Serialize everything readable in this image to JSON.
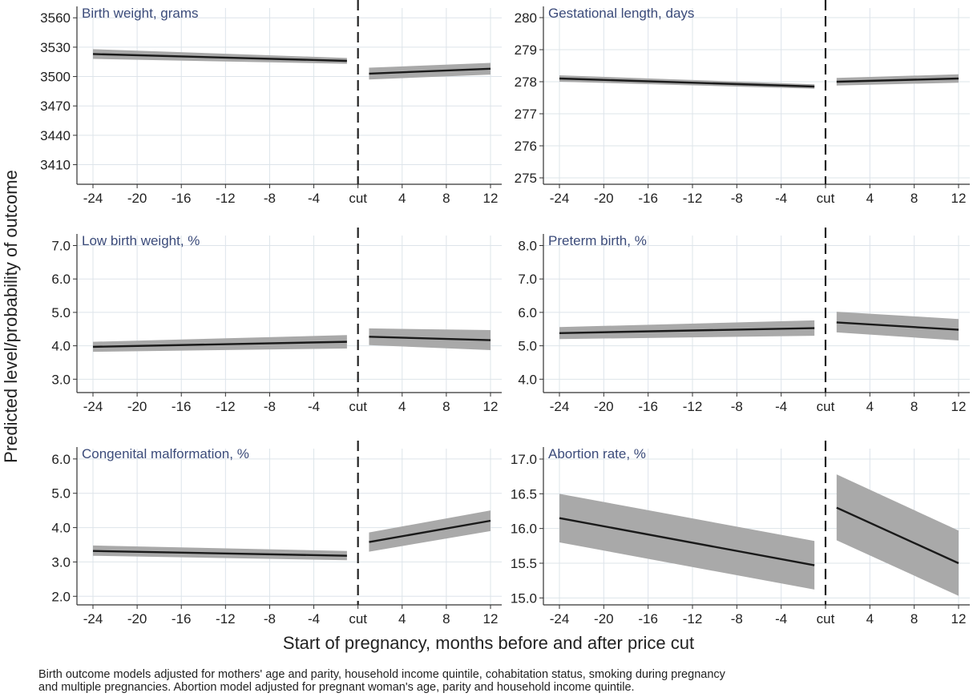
{
  "figure": {
    "ylabel": "Predicted level/probability of outcome",
    "xlabel": "Start of pregnancy, months before and after price cut",
    "footnote_lines": [
      "Birth outcome models adjusted for mothers' age and parity, household income quintile, cohabitation status, smoking during pregnancy",
      "and multiple pregnancies. Abortion model adjusted for pregnant woman's age, parity and household income quintile."
    ]
  },
  "colors": {
    "line": "#1a1a1a",
    "band": "#a9a9a9",
    "grid": "#dde4ea",
    "title": "#3b4b7a",
    "axis": "#333333"
  },
  "chart_data": [
    {
      "type": "line",
      "title": "Birth weight, grams",
      "xticks": [
        "-24",
        "-20",
        "-16",
        "-12",
        "-8",
        "-4",
        "cut",
        "4",
        "8",
        "12"
      ],
      "xrange": [
        -24,
        12
      ],
      "ylim": [
        3390,
        3570
      ],
      "yticks": [
        "3410",
        "3440",
        "3470",
        "3500",
        "3530",
        "3560"
      ],
      "series": [
        {
          "segment": "before",
          "x": [
            -24,
            -1
          ],
          "y": [
            3523,
            3516
          ],
          "lower": [
            3518,
            3513
          ],
          "upper": [
            3528,
            3519
          ]
        },
        {
          "segment": "after",
          "x": [
            1,
            12
          ],
          "y": [
            3503,
            3508
          ],
          "lower": [
            3497,
            3502
          ],
          "upper": [
            3509,
            3514
          ]
        }
      ]
    },
    {
      "type": "line",
      "title": "Gestational length, days",
      "xticks": [
        "-24",
        "-20",
        "-16",
        "-12",
        "-8",
        "-4",
        "cut",
        "4",
        "8",
        "12"
      ],
      "xrange": [
        -24,
        12
      ],
      "ylim": [
        274.8,
        280.3
      ],
      "yticks": [
        "275",
        "276",
        "277",
        "278",
        "279",
        "280"
      ],
      "series": [
        {
          "segment": "before",
          "x": [
            -24,
            -1
          ],
          "y": [
            278.1,
            277.85
          ],
          "lower": [
            278.0,
            277.78
          ],
          "upper": [
            278.2,
            277.92
          ]
        },
        {
          "segment": "after",
          "x": [
            1,
            12
          ],
          "y": [
            278.0,
            278.1
          ],
          "lower": [
            277.88,
            277.97
          ],
          "upper": [
            278.12,
            278.23
          ]
        }
      ]
    },
    {
      "type": "line",
      "title": "Low birth weight, %",
      "xticks": [
        "-24",
        "-20",
        "-16",
        "-12",
        "-8",
        "-4",
        "cut",
        "4",
        "8",
        "12"
      ],
      "xrange": [
        -24,
        12
      ],
      "ylim": [
        2.6,
        7.3
      ],
      "yticks": [
        "3.0",
        "4.0",
        "5.0",
        "6.0",
        "7.0"
      ],
      "series": [
        {
          "segment": "before",
          "x": [
            -24,
            -1
          ],
          "y": [
            3.97,
            4.12
          ],
          "lower": [
            3.82,
            3.92
          ],
          "upper": [
            4.12,
            4.32
          ]
        },
        {
          "segment": "after",
          "x": [
            1,
            12
          ],
          "y": [
            4.27,
            4.17
          ],
          "lower": [
            4.02,
            3.87
          ],
          "upper": [
            4.52,
            4.47
          ]
        }
      ]
    },
    {
      "type": "line",
      "title": "Preterm birth, %",
      "xticks": [
        "-24",
        "-20",
        "-16",
        "-12",
        "-8",
        "-4",
        "cut",
        "4",
        "8",
        "12"
      ],
      "xrange": [
        -24,
        12
      ],
      "ylim": [
        3.6,
        8.3
      ],
      "yticks": [
        "4.0",
        "5.0",
        "6.0",
        "7.0",
        "8.0"
      ],
      "series": [
        {
          "segment": "before",
          "x": [
            -24,
            -1
          ],
          "y": [
            5.38,
            5.53
          ],
          "lower": [
            5.2,
            5.3
          ],
          "upper": [
            5.56,
            5.76
          ]
        },
        {
          "segment": "after",
          "x": [
            1,
            12
          ],
          "y": [
            5.7,
            5.48
          ],
          "lower": [
            5.4,
            5.16
          ],
          "upper": [
            6.02,
            5.8
          ]
        }
      ]
    },
    {
      "type": "line",
      "title": "Congenital malformation, %",
      "xticks": [
        "-24",
        "-20",
        "-16",
        "-12",
        "-8",
        "-4",
        "cut",
        "4",
        "8",
        "12"
      ],
      "xrange": [
        -24,
        12
      ],
      "ylim": [
        1.75,
        6.3
      ],
      "yticks": [
        "2.0",
        "3.0",
        "4.0",
        "5.0",
        "6.0"
      ],
      "series": [
        {
          "segment": "before",
          "x": [
            -24,
            -1
          ],
          "y": [
            3.32,
            3.18
          ],
          "lower": [
            3.18,
            3.05
          ],
          "upper": [
            3.48,
            3.32
          ]
        },
        {
          "segment": "after",
          "x": [
            1,
            12
          ],
          "y": [
            3.58,
            4.2
          ],
          "lower": [
            3.3,
            3.9
          ],
          "upper": [
            3.86,
            4.5
          ]
        }
      ]
    },
    {
      "type": "line",
      "title": "Abortion rate, %",
      "xticks": [
        "-24",
        "-20",
        "-16",
        "-12",
        "-8",
        "-4",
        "cut",
        "4",
        "8",
        "12"
      ],
      "xrange": [
        -24,
        12
      ],
      "ylim": [
        14.9,
        17.15
      ],
      "yticks": [
        "15.0",
        "15.5",
        "16.0",
        "16.5",
        "17.0"
      ],
      "series": [
        {
          "segment": "before",
          "x": [
            -24,
            -1
          ],
          "y": [
            16.15,
            15.47
          ],
          "lower": [
            15.8,
            15.12
          ],
          "upper": [
            16.5,
            15.82
          ]
        },
        {
          "segment": "after",
          "x": [
            1,
            12
          ],
          "y": [
            16.3,
            15.5
          ],
          "lower": [
            15.83,
            15.03
          ],
          "upper": [
            16.78,
            15.97
          ]
        }
      ]
    }
  ]
}
